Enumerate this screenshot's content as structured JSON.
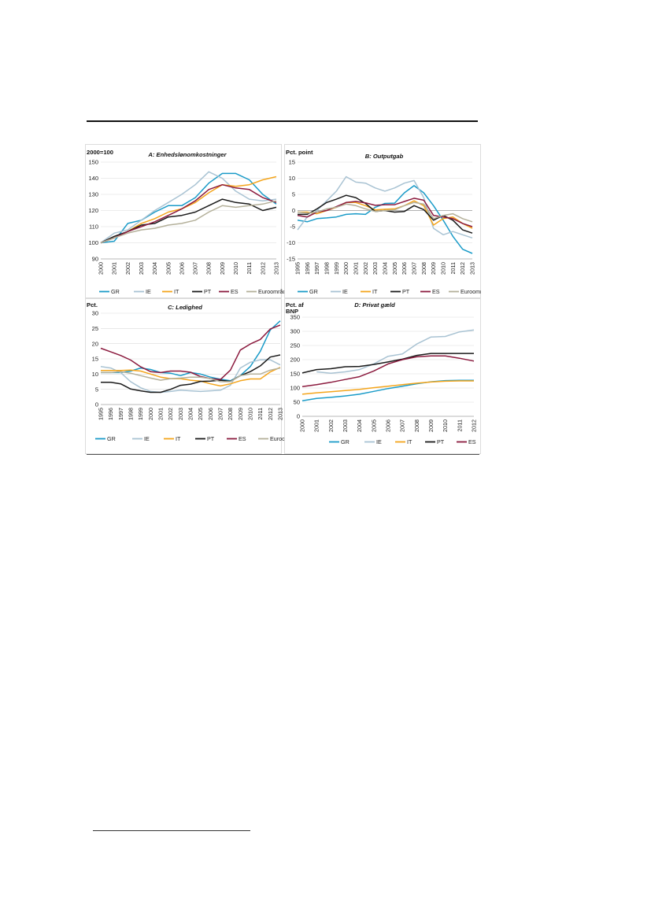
{
  "colors": {
    "GR": "#1a9bc8",
    "IE": "#a9c3d3",
    "IT": "#f4a51c",
    "PT": "#1a1a1a",
    "ES": "#8b1a3e",
    "Euro": "#b4b09a"
  },
  "chart_data": [
    {
      "type": "line",
      "title": "A: Enhedslønomkostninger",
      "ylabel": "2000=100",
      "categories": [
        "2000",
        "2001",
        "2002",
        "2003",
        "2004",
        "2005",
        "2006",
        "2007",
        "2008",
        "2009",
        "2010",
        "2011",
        "2012",
        "2013"
      ],
      "ylim": [
        90,
        150
      ],
      "yticks": [
        90,
        100,
        110,
        120,
        130,
        140,
        150
      ],
      "series": [
        {
          "name": "GR",
          "key": "GR",
          "values": [
            100,
            101,
            112,
            114,
            119,
            123,
            123,
            128,
            137,
            143,
            143,
            139,
            130,
            124
          ]
        },
        {
          "name": "IE",
          "key": "IE",
          "values": [
            100,
            106,
            108,
            114,
            120,
            125,
            130,
            136,
            144,
            140,
            132,
            127,
            126,
            127
          ]
        },
        {
          "name": "IT",
          "key": "IT",
          "values": [
            100,
            103,
            107,
            112,
            115,
            119,
            121,
            125,
            131,
            136,
            135,
            136,
            139,
            141
          ]
        },
        {
          "name": "PT",
          "key": "PT",
          "values": [
            100,
            104,
            107,
            111,
            112,
            116,
            117,
            119,
            123,
            127,
            125,
            124,
            120,
            122
          ]
        },
        {
          "name": "ES",
          "key": "ES",
          "values": [
            100,
            103,
            107,
            110,
            113,
            117,
            121,
            126,
            133,
            136,
            134,
            133,
            128,
            125
          ]
        },
        {
          "name": "Euroområdet",
          "key": "Euro",
          "values": [
            100,
            103,
            106,
            108,
            109,
            111,
            112,
            114,
            119,
            123,
            122,
            123,
            124,
            126
          ]
        }
      ],
      "legend": "bottom"
    },
    {
      "type": "line",
      "title": "B: Outputgab",
      "ylabel": "Pct. point",
      "categories": [
        "1995",
        "1996",
        "1997",
        "1998",
        "1999",
        "2000",
        "2001",
        "2002",
        "2003",
        "2004",
        "2005",
        "2006",
        "2007",
        "2008",
        "2009",
        "2010",
        "2011",
        "2012",
        "2013"
      ],
      "ylim": [
        -15,
        15
      ],
      "yticks": [
        -15,
        -10,
        -5,
        0,
        5,
        10,
        15
      ],
      "series": [
        {
          "name": "GR",
          "key": "GR",
          "values": [
            -3,
            -3.5,
            -2.5,
            -2.3,
            -2,
            -1.2,
            -1,
            -1.2,
            1,
            2.2,
            2.3,
            5.5,
            7.7,
            5.5,
            1.5,
            -3,
            -8,
            -12,
            -13.3
          ]
        },
        {
          "name": "IE",
          "key": "IE",
          "values": [
            -6,
            -2,
            0,
            3,
            6,
            10.5,
            8.8,
            8.5,
            7,
            6,
            7,
            8.5,
            9.3,
            4,
            -5.5,
            -7.5,
            -6.5,
            -7.5,
            -8.5
          ]
        },
        {
          "name": "IT",
          "key": "IT",
          "values": [
            -0.5,
            -0.5,
            -1,
            0,
            1,
            2.5,
            2.5,
            1.5,
            0.2,
            0.4,
            0.5,
            1.5,
            3,
            1.5,
            -4.5,
            -2.5,
            -2,
            -4,
            -5.5
          ]
        },
        {
          "name": "PT",
          "key": "PT",
          "values": [
            -1.2,
            -1.2,
            0.5,
            2.5,
            3.5,
            4.7,
            4,
            2.2,
            -0.3,
            0,
            -0.5,
            -0.3,
            1.5,
            0.3,
            -3,
            -1.5,
            -3,
            -6,
            -7
          ]
        },
        {
          "name": "ES",
          "key": "ES",
          "values": [
            -1.5,
            -2,
            -0.5,
            0,
            1.2,
            2.5,
            2.8,
            2.4,
            1.6,
            1.8,
            1.8,
            2.8,
            3.8,
            3.2,
            -1.5,
            -2,
            -2.5,
            -4,
            -5
          ]
        },
        {
          "name": "Euroområdet",
          "key": "Euro",
          "values": [
            -0.5,
            -0.8,
            -0.5,
            0.5,
            1,
            2,
            1.5,
            0.5,
            -0.3,
            0,
            0.2,
            1.5,
            2.5,
            2,
            -2.5,
            -1.5,
            -1,
            -2.5,
            -3.5
          ]
        }
      ],
      "legend": "bottom"
    },
    {
      "type": "line",
      "title": "C: Ledighed",
      "ylabel": "Pct.",
      "categories": [
        "1995",
        "1996",
        "1997",
        "1998",
        "1999",
        "2000",
        "2001",
        "2002",
        "2003",
        "2004",
        "2005",
        "2006",
        "2007",
        "2008",
        "2009",
        "2010",
        "2011",
        "2012",
        "2013"
      ],
      "ylim": [
        0,
        30
      ],
      "yticks": [
        0,
        5,
        10,
        15,
        20,
        25,
        30
      ],
      "series": [
        {
          "name": "GR",
          "key": "GR",
          "values": [
            10.5,
            10.5,
            10.5,
            11,
            12,
            11.5,
            10.5,
            10.3,
            9.5,
            10.5,
            10,
            9,
            8.3,
            7.8,
            9.5,
            12.5,
            17.5,
            24.5,
            27.5
          ]
        },
        {
          "name": "IE",
          "key": "IE",
          "values": [
            12.5,
            12,
            10.5,
            7.5,
            5.5,
            4.3,
            4,
            4.3,
            4.7,
            4.5,
            4.3,
            4.5,
            4.7,
            6.3,
            12,
            13.9,
            14.7,
            14.7,
            13
          ]
        },
        {
          "name": "IT",
          "key": "IT",
          "values": [
            11.2,
            11.2,
            11.2,
            11.3,
            11,
            10,
            9,
            8.5,
            8.5,
            8,
            7.7,
            6.8,
            6.1,
            6.8,
            7.8,
            8.4,
            8.4,
            10.7,
            12.2
          ]
        },
        {
          "name": "PT",
          "key": "PT",
          "values": [
            7.3,
            7.3,
            6.8,
            5.1,
            4.5,
            4,
            4,
            5,
            6.3,
            6.7,
            7.6,
            7.7,
            8,
            7.6,
            9.5,
            10.8,
            12.7,
            15.6,
            16.3
          ]
        },
        {
          "name": "ES",
          "key": "ES",
          "values": [
            18.5,
            17.3,
            16.1,
            14.6,
            12.4,
            10.8,
            10.5,
            11,
            11,
            10.6,
            9.2,
            8.5,
            8.2,
            11.3,
            17.9,
            19.9,
            21.4,
            24.8,
            26.1
          ]
        },
        {
          "name": "Euroområdet",
          "key": "Euro",
          "values": [
            10.5,
            10.5,
            10.8,
            10.3,
            9.5,
            8.7,
            8,
            8.5,
            8.7,
            9,
            9,
            8.5,
            7.5,
            7.5,
            9.5,
            10,
            10,
            11.3,
            12
          ]
        }
      ],
      "legend": "bottom"
    },
    {
      "type": "line",
      "title": "D: Privat gæld",
      "ylabel": "Pct. af BNP",
      "categories": [
        "2000",
        "2001",
        "2002",
        "2003",
        "2004",
        "2005",
        "2006",
        "2007",
        "2008",
        "2009",
        "2010",
        "2011",
        "2012"
      ],
      "ylim": [
        0,
        350
      ],
      "yticks": [
        0,
        50,
        100,
        150,
        200,
        250,
        300,
        350
      ],
      "series": [
        {
          "name": "GR",
          "key": "GR",
          "values": [
            55,
            63,
            67,
            72,
            78,
            88,
            98,
            106,
            115,
            122,
            126,
            127,
            127
          ]
        },
        {
          "name": "IE",
          "key": "IE",
          "values": [
            null,
            157,
            152,
            157,
            165,
            185,
            212,
            220,
            255,
            280,
            282,
            298,
            305
          ]
        },
        {
          "name": "IT",
          "key": "IT",
          "values": [
            78,
            83,
            87,
            91,
            95,
            101,
            106,
            112,
            117,
            121,
            124,
            125,
            125
          ]
        },
        {
          "name": "PT",
          "key": "PT",
          "values": [
            153,
            165,
            168,
            175,
            176,
            183,
            192,
            202,
            215,
            222,
            222,
            222,
            222
          ]
        },
        {
          "name": "ES",
          "key": "ES",
          "values": [
            105,
            112,
            120,
            130,
            140,
            160,
            185,
            200,
            210,
            213,
            213,
            205,
            195
          ]
        }
      ],
      "legend": "bottom"
    }
  ]
}
